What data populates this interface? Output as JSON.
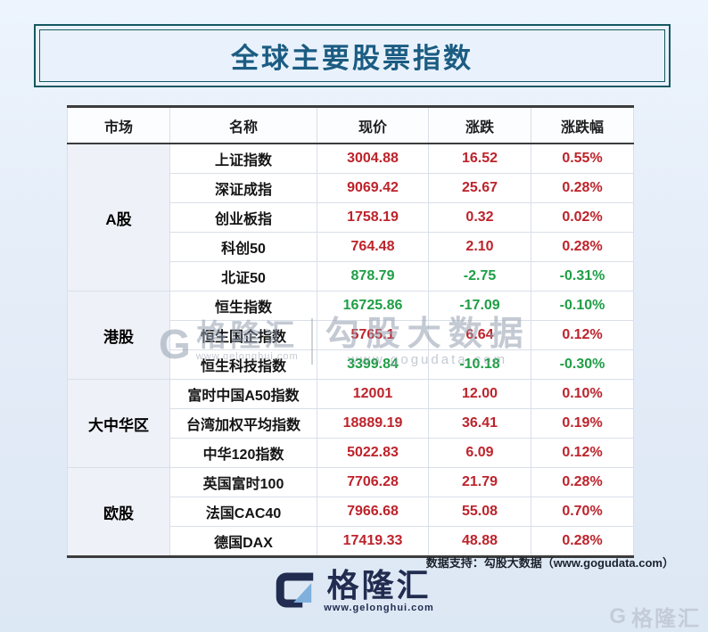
{
  "title": "全球主要股票指数",
  "table": {
    "headers": [
      "市场",
      "名称",
      "现价",
      "涨跌",
      "涨跌幅"
    ],
    "groups": [
      {
        "market": "A股",
        "rows": [
          {
            "name": "上证指数",
            "price": "3004.88",
            "change": "16.52",
            "pct": "0.55%",
            "dir": "up"
          },
          {
            "name": "深证成指",
            "price": "9069.42",
            "change": "25.67",
            "pct": "0.28%",
            "dir": "up"
          },
          {
            "name": "创业板指",
            "price": "1758.19",
            "change": "0.32",
            "pct": "0.02%",
            "dir": "up"
          },
          {
            "name": "科创50",
            "price": "764.48",
            "change": "2.10",
            "pct": "0.28%",
            "dir": "up"
          },
          {
            "name": "北证50",
            "price": "878.79",
            "change": "-2.75",
            "pct": "-0.31%",
            "dir": "down"
          }
        ]
      },
      {
        "market": "港股",
        "rows": [
          {
            "name": "恒生指数",
            "price": "16725.86",
            "change": "-17.09",
            "pct": "-0.10%",
            "dir": "down"
          },
          {
            "name": "恒生国企指数",
            "price": "5765.1",
            "change": "6.64",
            "pct": "0.12%",
            "dir": "up"
          },
          {
            "name": "恒生科技指数",
            "price": "3399.84",
            "change": "-10.18",
            "pct": "-0.30%",
            "dir": "down"
          }
        ]
      },
      {
        "market": "大中华区",
        "rows": [
          {
            "name": "富时中国A50指数",
            "price": "12001",
            "change": "12.00",
            "pct": "0.10%",
            "dir": "up"
          },
          {
            "name": "台湾加权平均指数",
            "price": "18889.19",
            "change": "36.41",
            "pct": "0.19%",
            "dir": "up"
          },
          {
            "name": "中华120指数",
            "price": "5022.83",
            "change": "6.09",
            "pct": "0.12%",
            "dir": "up"
          }
        ]
      },
      {
        "market": "欧股",
        "rows": [
          {
            "name": "英国富时100",
            "price": "7706.28",
            "change": "21.79",
            "pct": "0.28%",
            "dir": "up"
          },
          {
            "name": "法国CAC40",
            "price": "7966.68",
            "change": "55.08",
            "pct": "0.70%",
            "dir": "up"
          },
          {
            "name": "德国DAX",
            "price": "17419.33",
            "change": "48.88",
            "pct": "0.28%",
            "dir": "up"
          }
        ]
      }
    ]
  },
  "mid_watermark": {
    "g_glyph": "G",
    "brand": "格隆汇",
    "brand_url": "www.gelonghui.com",
    "partner": "勾股大数据",
    "partner_url": "www.gogudata.com"
  },
  "footer": {
    "data_support": "数据支持：勾股大数据（www.gogudata.com）",
    "brand": "格隆汇",
    "brand_url": "www.gelonghui.com"
  },
  "corner_watermark": {
    "g_glyph": "G",
    "brand": "格隆汇"
  },
  "colors": {
    "up": "#bd232b",
    "down": "#1f9e46",
    "accent": "#155861",
    "title": "#1b5c82"
  }
}
